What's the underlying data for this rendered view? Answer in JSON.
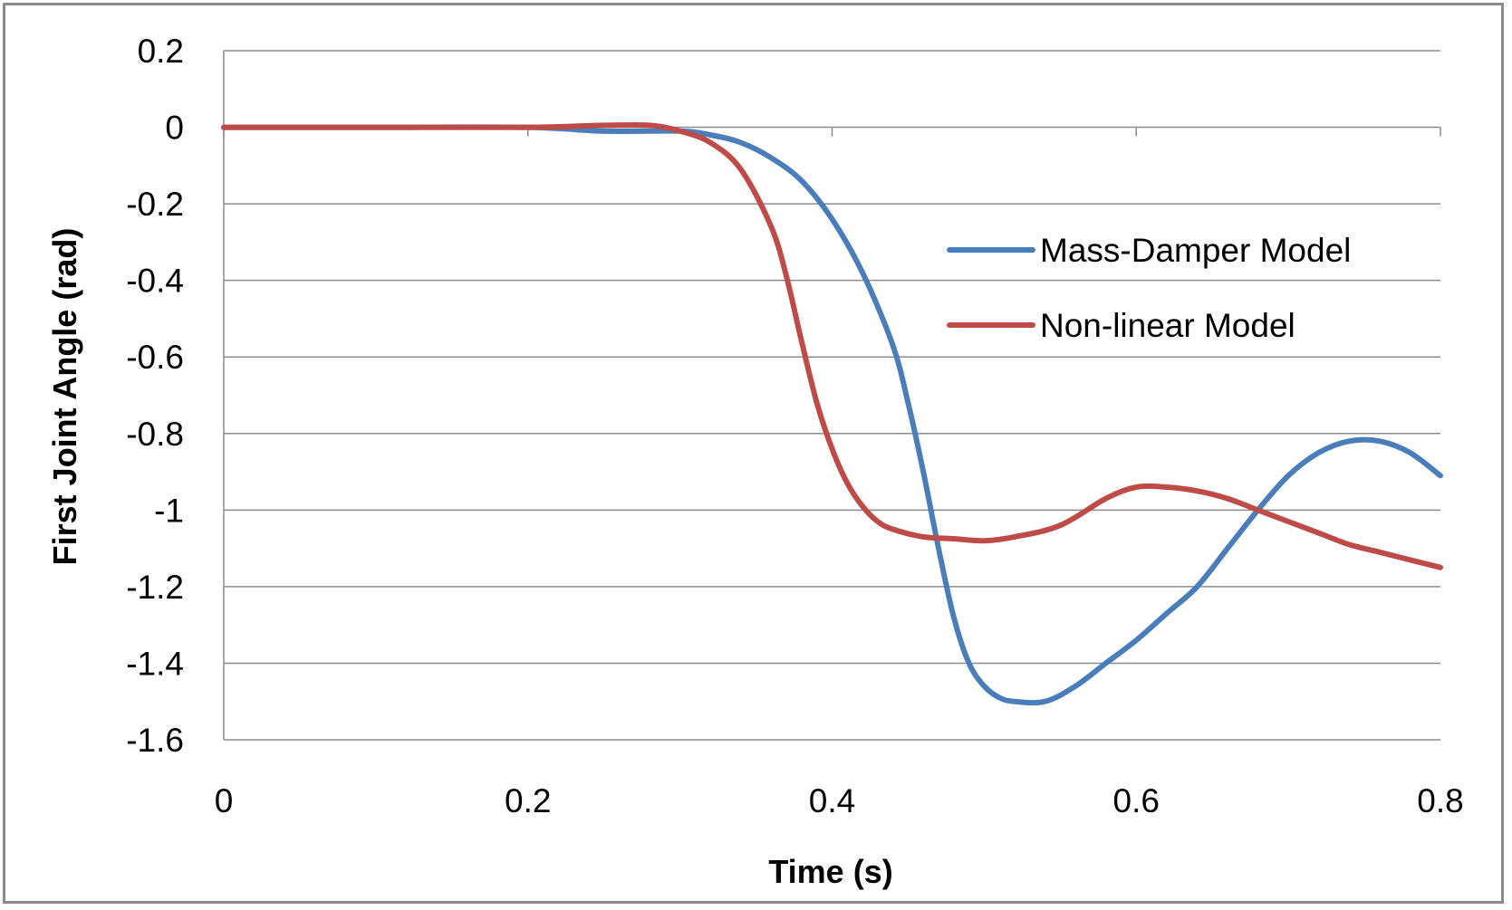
{
  "chart_data": {
    "type": "line",
    "title": "",
    "xlabel": "Time (s)",
    "ylabel": "First Joint Angle (rad)",
    "xlim": [
      0,
      0.8
    ],
    "ylim": [
      -1.6,
      0.2
    ],
    "x_ticks": [
      0,
      0.2,
      0.4,
      0.6,
      0.8
    ],
    "x_tick_labels": [
      "0",
      "0.2",
      "0.4",
      "0.6",
      "0.8"
    ],
    "y_ticks": [
      0.2,
      0,
      -0.2,
      -0.4,
      -0.6,
      -0.8,
      -1,
      -1.2,
      -1.4,
      -1.6
    ],
    "y_tick_labels": [
      "0.2",
      "0",
      "-0.2",
      "-0.4",
      "-0.6",
      "-0.8",
      "-1",
      "-1.2",
      "-1.4",
      "-1.6"
    ],
    "grid": "horizontal",
    "legend_position": "right",
    "series": [
      {
        "name": "Mass-Damper Model",
        "color": "#4a7ebb",
        "x": [
          0,
          0.1,
          0.2,
          0.25,
          0.3,
          0.32,
          0.34,
          0.36,
          0.38,
          0.4,
          0.42,
          0.44,
          0.45,
          0.46,
          0.47,
          0.48,
          0.49,
          0.5,
          0.51,
          0.52,
          0.54,
          0.56,
          0.58,
          0.6,
          0.62,
          0.64,
          0.66,
          0.68,
          0.7,
          0.72,
          0.74,
          0.76,
          0.78,
          0.8
        ],
        "y": [
          0,
          0,
          0,
          -0.01,
          -0.01,
          -0.02,
          -0.04,
          -0.08,
          -0.14,
          -0.24,
          -0.38,
          -0.57,
          -0.72,
          -0.9,
          -1.1,
          -1.28,
          -1.4,
          -1.46,
          -1.49,
          -1.5,
          -1.5,
          -1.46,
          -1.4,
          -1.34,
          -1.27,
          -1.2,
          -1.1,
          -1.0,
          -0.91,
          -0.85,
          -0.82,
          -0.82,
          -0.85,
          -0.91
        ]
      },
      {
        "name": "Non-linear Model",
        "color": "#be4b48",
        "x": [
          0,
          0.1,
          0.2,
          0.25,
          0.28,
          0.3,
          0.32,
          0.34,
          0.36,
          0.37,
          0.38,
          0.39,
          0.4,
          0.41,
          0.42,
          0.43,
          0.44,
          0.46,
          0.48,
          0.5,
          0.52,
          0.55,
          0.58,
          0.6,
          0.62,
          0.64,
          0.66,
          0.68,
          0.7,
          0.72,
          0.74,
          0.76,
          0.78,
          0.8
        ],
        "y": [
          0,
          0,
          0,
          0.005,
          0.005,
          -0.01,
          -0.04,
          -0.11,
          -0.26,
          -0.39,
          -0.56,
          -0.72,
          -0.84,
          -0.93,
          -0.99,
          -1.03,
          -1.05,
          -1.07,
          -1.075,
          -1.08,
          -1.07,
          -1.04,
          -0.97,
          -0.94,
          -0.94,
          -0.95,
          -0.97,
          -1.0,
          -1.03,
          -1.06,
          -1.09,
          -1.11,
          -1.13,
          -1.15
        ]
      }
    ]
  }
}
